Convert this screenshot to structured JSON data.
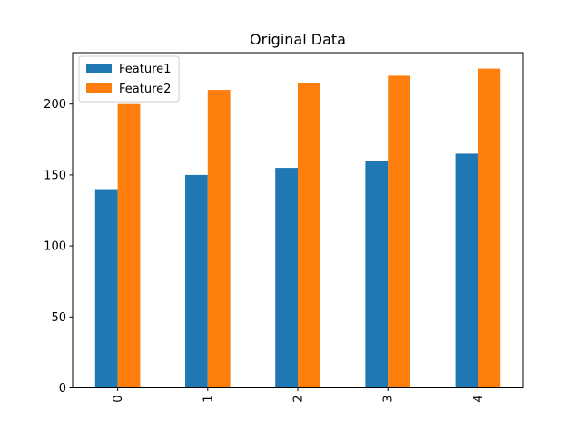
{
  "chart_data": {
    "type": "bar",
    "title": "Original Data",
    "xlabel": "",
    "ylabel": "",
    "categories": [
      "0",
      "1",
      "2",
      "3",
      "4"
    ],
    "series": [
      {
        "name": "Feature1",
        "values": [
          140,
          150,
          155,
          160,
          165
        ],
        "color": "#1f77b4"
      },
      {
        "name": "Feature2",
        "values": [
          200,
          210,
          215,
          220,
          225
        ],
        "color": "#ff7f0e"
      }
    ],
    "ylim": [
      0,
      236.25
    ],
    "yticks": [
      0,
      50,
      100,
      150,
      200
    ],
    "grid": false,
    "legend": {
      "placement": "top-left"
    }
  }
}
